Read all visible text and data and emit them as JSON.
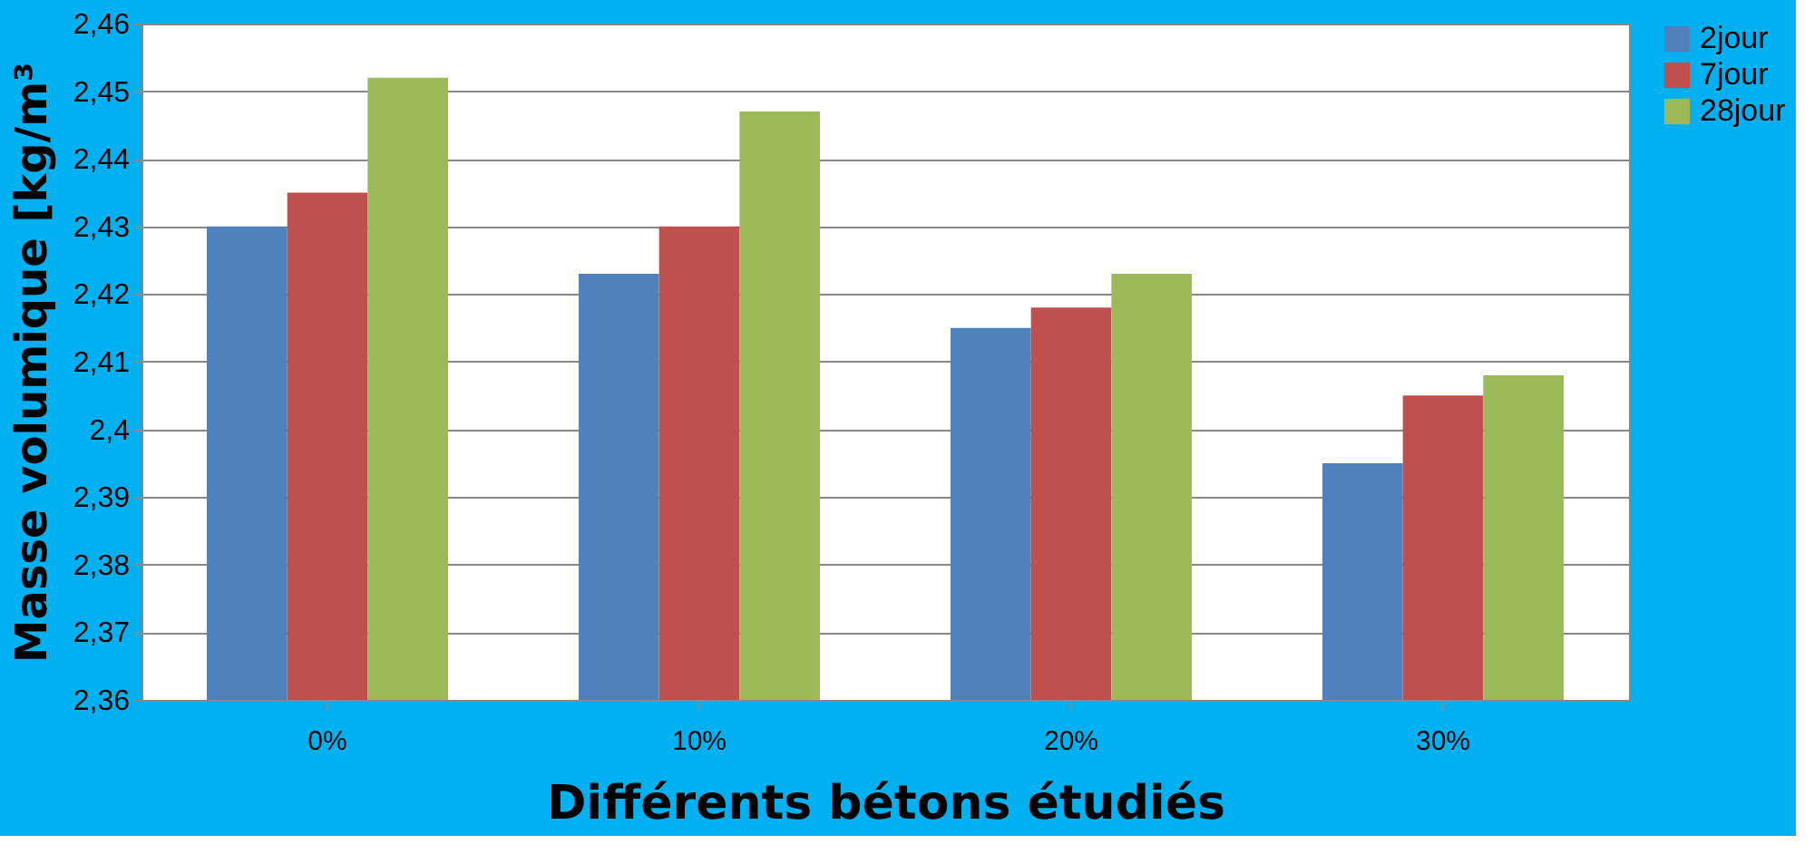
{
  "chart_data": {
    "type": "bar",
    "xlabel": "Différents bétons étudiés",
    "ylabel": "Masse volumique [kg/m³",
    "categories": [
      "0%",
      "10%",
      "20%",
      "30%"
    ],
    "series": [
      {
        "name": "2jour",
        "color": "#4f81bd",
        "values": [
          2.43,
          2.423,
          2.415,
          2.395
        ]
      },
      {
        "name": "7jour",
        "color": "#c0504d",
        "values": [
          2.435,
          2.43,
          2.418,
          2.405
        ]
      },
      {
        "name": "28jour",
        "color": "#9bbb59",
        "values": [
          2.452,
          2.447,
          2.423,
          2.408
        ]
      }
    ],
    "ylim": [
      2.36,
      2.46
    ],
    "yticks": [
      {
        "value": 2.36,
        "label": "2,36"
      },
      {
        "value": 2.37,
        "label": "2,37"
      },
      {
        "value": 2.38,
        "label": "2,38"
      },
      {
        "value": 2.39,
        "label": "2,39"
      },
      {
        "value": 2.4,
        "label": "2,4"
      },
      {
        "value": 2.41,
        "label": "2,41"
      },
      {
        "value": 2.42,
        "label": "2,42"
      },
      {
        "value": 2.43,
        "label": "2,43"
      },
      {
        "value": 2.44,
        "label": "2,44"
      },
      {
        "value": 2.45,
        "label": "2,45"
      },
      {
        "value": 2.46,
        "label": "2,46"
      }
    ],
    "grid": "y",
    "legend": "right"
  }
}
